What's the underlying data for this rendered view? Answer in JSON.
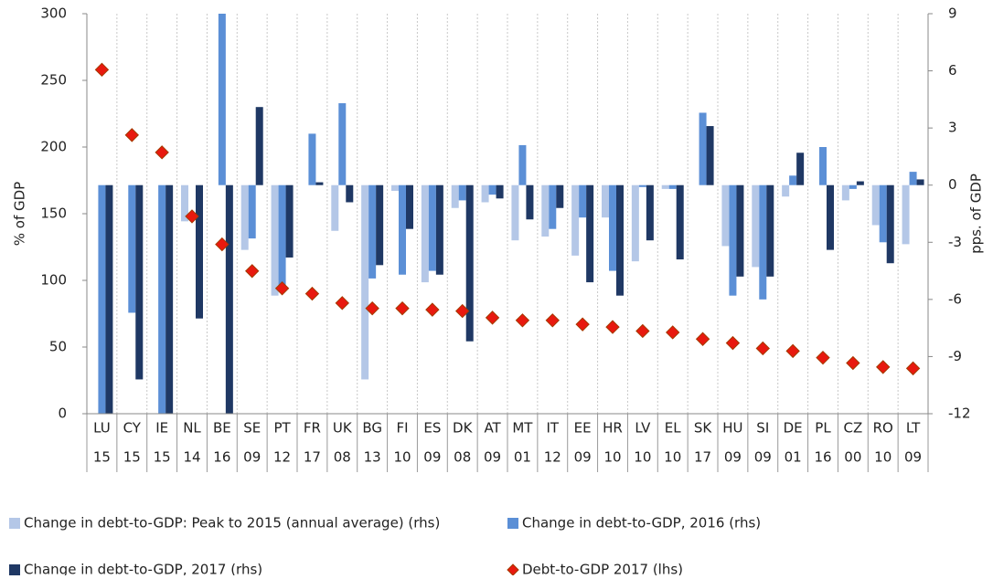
{
  "chart_data": {
    "type": "bar",
    "categories": [
      "LU",
      "CY",
      "IE",
      "NL",
      "BE",
      "SE",
      "PT",
      "FR",
      "UK",
      "BG",
      "FI",
      "ES",
      "DK",
      "AT",
      "MT",
      "IT",
      "EE",
      "HR",
      "LV",
      "EL",
      "SK",
      "HU",
      "SI",
      "DE",
      "PL",
      "CZ",
      "RO",
      "LT"
    ],
    "categories_sub": [
      "15",
      "15",
      "15",
      "14",
      "16",
      "09",
      "12",
      "17",
      "08",
      "13",
      "10",
      "09",
      "08",
      "09",
      "01",
      "12",
      "09",
      "10",
      "10",
      "10",
      "17",
      "09",
      "09",
      "01",
      "16",
      "00",
      "10",
      "09"
    ],
    "ylabel": "% of GDP",
    "y2label": "pps. of GDP",
    "ylim": [
      0,
      300
    ],
    "yticks": [
      0,
      50,
      100,
      150,
      200,
      250,
      300
    ],
    "y2lim": [
      -12,
      9
    ],
    "y2ticks": [
      -12,
      -9,
      -6,
      -3,
      0,
      3,
      6,
      9
    ],
    "legend": "bottom",
    "grid": "x-dotted",
    "series": [
      {
        "name": "Change in debt-to-GDP: Peak to 2015 (annual average) (rhs)",
        "type": "bar",
        "axis": "y2",
        "color": "#b4c7e7",
        "values": [
          null,
          null,
          null,
          -1.9,
          null,
          -3.4,
          -5.8,
          null,
          -2.4,
          -10.2,
          -0.3,
          -5.1,
          -1.2,
          -0.9,
          -2.9,
          -2.7,
          -3.7,
          -1.7,
          -4.0,
          -0.2,
          null,
          -3.2,
          -4.3,
          -0.6,
          null,
          -0.8,
          -2.1,
          -3.1
        ]
      },
      {
        "name": "Change in debt-to-GDP, 2016 (rhs)",
        "type": "bar",
        "axis": "y2",
        "color": "#5b8fd6",
        "values": [
          -12,
          -6.7,
          -12,
          null,
          9,
          -2.8,
          -5.6,
          2.7,
          4.3,
          -4.9,
          -4.7,
          -4.5,
          -0.8,
          -0.5,
          2.1,
          -2.3,
          -1.7,
          -4.5,
          -0.1,
          -0.2,
          3.8,
          -5.8,
          -6.0,
          0.5,
          2.0,
          -0.2,
          -3.0,
          0.7
        ]
      },
      {
        "name": "Change in debt-to-GDP, 2017 (rhs)",
        "type": "bar",
        "axis": "y2",
        "color": "#1f3864",
        "values": [
          -12,
          -10.2,
          -12,
          -7.0,
          -12,
          4.1,
          -3.8,
          0.15,
          -0.9,
          -4.2,
          -2.3,
          -4.7,
          -8.2,
          -0.7,
          -1.8,
          -1.2,
          -5.1,
          -5.8,
          -2.9,
          -3.9,
          3.1,
          -4.8,
          -4.8,
          1.7,
          -3.4,
          0.2,
          -4.1,
          0.3
        ]
      },
      {
        "name": "Debt-to-GDP 2017 (lhs)",
        "type": "scatter",
        "axis": "y",
        "color": "#e8190f",
        "values": [
          258,
          209,
          196,
          148,
          127,
          107,
          94,
          90,
          83,
          79,
          79,
          78,
          77,
          72,
          70,
          70,
          67,
          65,
          62,
          61,
          56,
          53,
          49,
          47,
          42,
          38,
          35,
          34
        ]
      }
    ]
  }
}
